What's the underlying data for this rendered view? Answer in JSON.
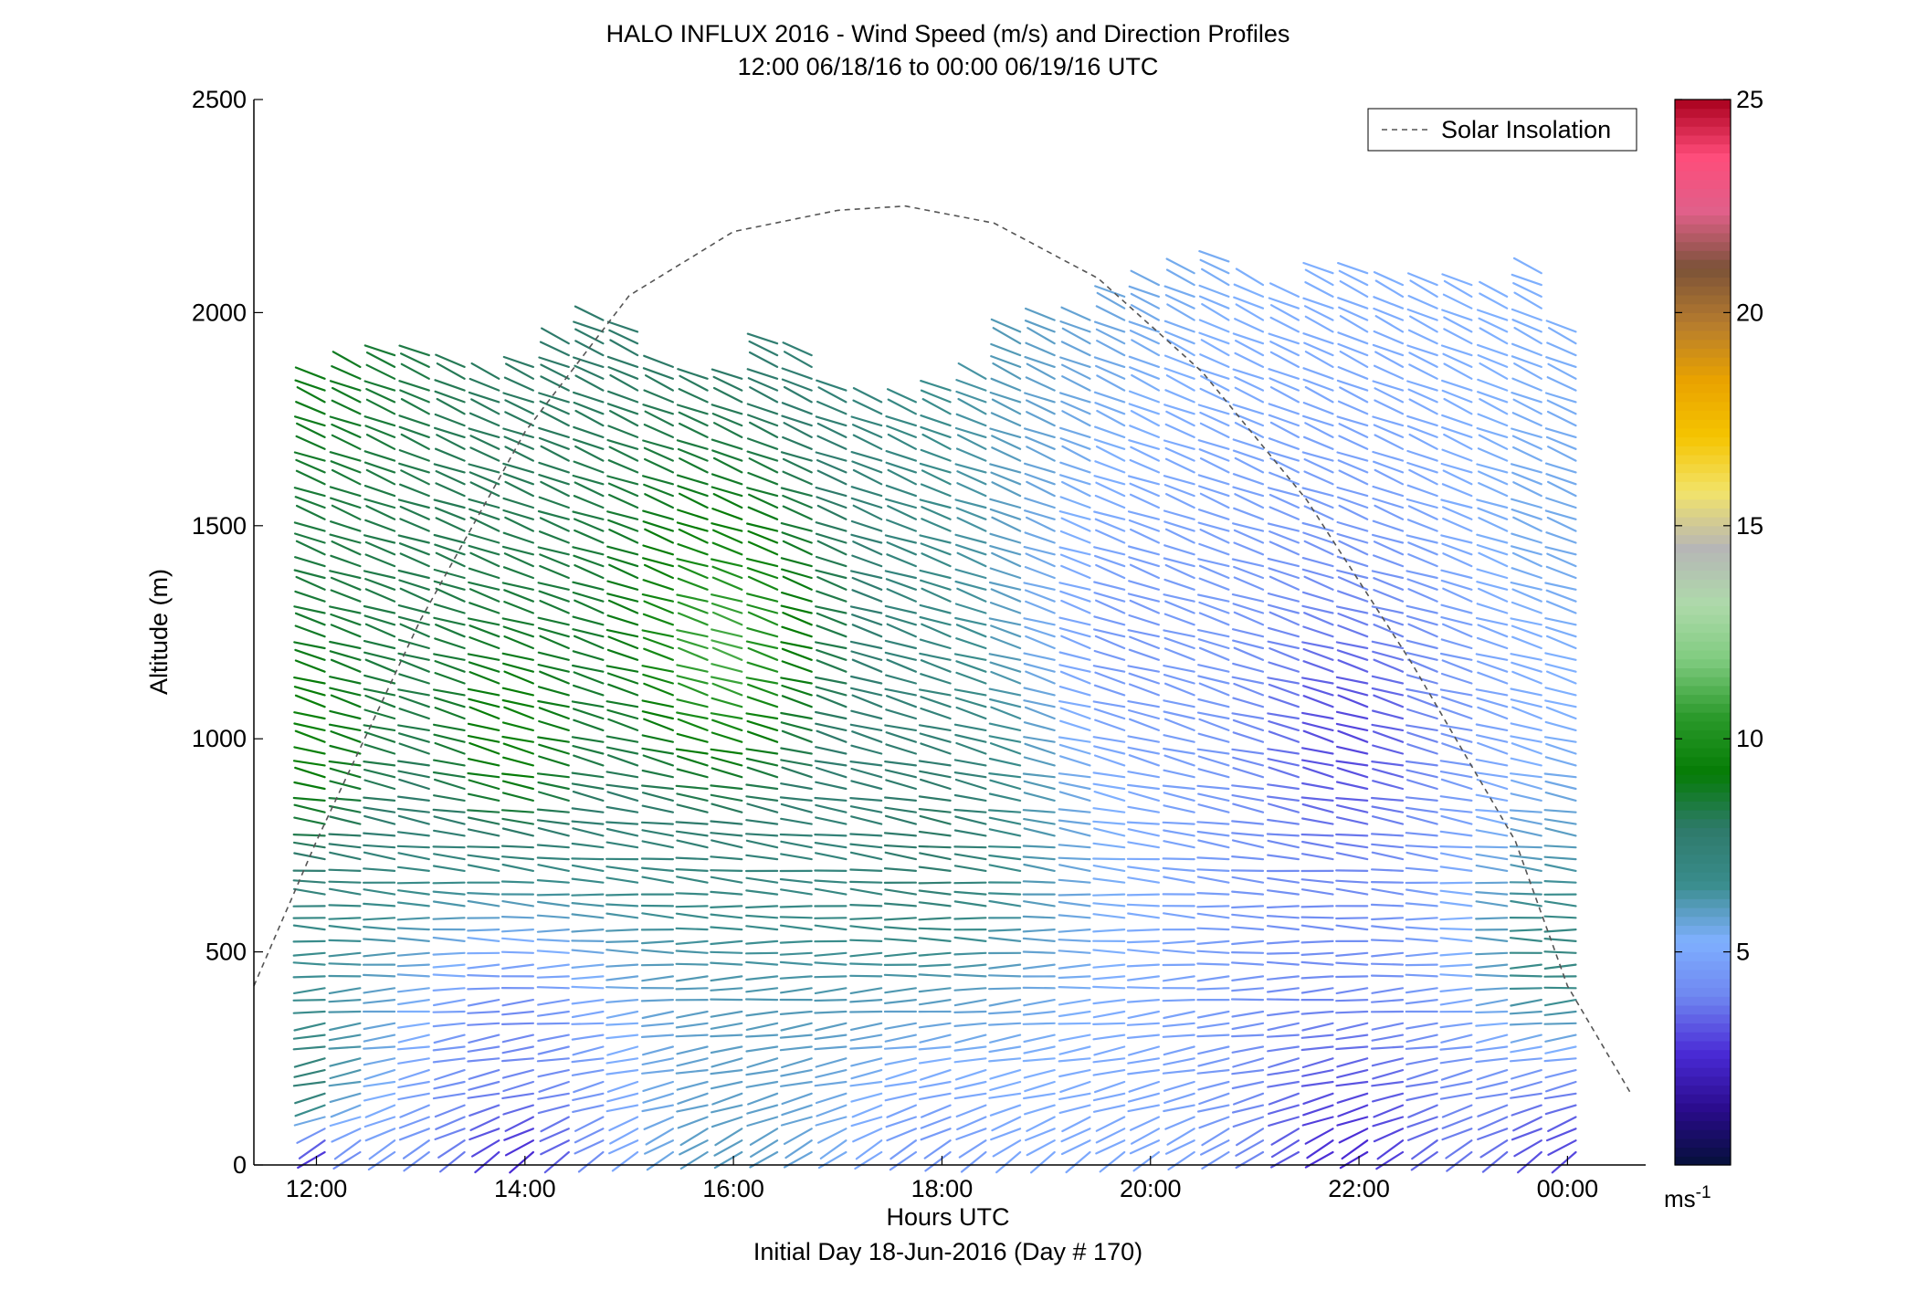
{
  "chart_data": {
    "type": "quiver",
    "title": "HALO INFLUX 2016 - Wind Speed (m/s) and Direction Profiles",
    "subtitle": "12:00 06/18/16 to 00:00 06/19/16  UTC",
    "xlabel": "Hours UTC",
    "xlabel2": "Initial Day 18-Jun-2016 (Day # 170)",
    "ylabel": "Altitude (m)",
    "xlim": [
      11.4,
      24.75
    ],
    "ylim": [
      0,
      2500
    ],
    "xticks": [
      {
        "value": 12,
        "label": "12:00"
      },
      {
        "value": 14,
        "label": "14:00"
      },
      {
        "value": 16,
        "label": "16:00"
      },
      {
        "value": 18,
        "label": "18:00"
      },
      {
        "value": 20,
        "label": "20:00"
      },
      {
        "value": 22,
        "label": "22:00"
      },
      {
        "value": 24,
        "label": "00:00"
      }
    ],
    "yticks": [
      {
        "value": 0,
        "label": "0"
      },
      {
        "value": 500,
        "label": "500"
      },
      {
        "value": 1000,
        "label": "1000"
      },
      {
        "value": 1500,
        "label": "1500"
      },
      {
        "value": 2000,
        "label": "2000"
      },
      {
        "value": 2500,
        "label": "2500"
      }
    ],
    "legend": {
      "label": "Solar Insolation",
      "placement": "top-right",
      "color": "#555555"
    },
    "colorbar": {
      "range": [
        0,
        25
      ],
      "ticks": [
        {
          "value": 5,
          "label": "5"
        },
        {
          "value": 10,
          "label": "10"
        },
        {
          "value": 15,
          "label": "15"
        },
        {
          "value": 20,
          "label": "20"
        },
        {
          "value": 25,
          "label": "25"
        }
      ],
      "unit_base": "ms",
      "unit_exp": "-1",
      "colors": [
        "#05103a",
        "#2a0b8c",
        "#4a2bd6",
        "#6f86f0",
        "#7fb0ff",
        "#3a8d8d",
        "#2e7a6a",
        "#057c05",
        "#2b9a2b",
        "#7fcb7f",
        "#aedaaa",
        "#b6b6b6",
        "#f2e36a",
        "#f5c400",
        "#e9a200",
        "#b67c2e",
        "#7b5238",
        "#e0608a",
        "#ff4c7a",
        "#a8001c"
      ]
    },
    "solar_insolation": {
      "peak_hour": 17.65,
      "peak_altitude": 2250,
      "points": [
        [
          11.4,
          420
        ],
        [
          12.0,
          760
        ],
        [
          13.0,
          1280
        ],
        [
          14.0,
          1720
        ],
        [
          15.0,
          2040
        ],
        [
          16.0,
          2190
        ],
        [
          17.0,
          2240
        ],
        [
          17.65,
          2250
        ],
        [
          18.5,
          2210
        ],
        [
          19.5,
          2080
        ],
        [
          20.5,
          1860
        ],
        [
          21.5,
          1560
        ],
        [
          22.5,
          1180
        ],
        [
          23.5,
          760
        ],
        [
          24.0,
          420
        ],
        [
          24.65,
          150
        ]
      ]
    },
    "wind_profiles": {
      "times": [
        12.08,
        12.42,
        12.75,
        13.08,
        13.42,
        13.75,
        14.08,
        14.42,
        14.75,
        15.08,
        15.42,
        15.75,
        16.08,
        16.42,
        16.75,
        17.08,
        17.42,
        17.75,
        18.08,
        18.42,
        18.75,
        19.08,
        19.42,
        19.75,
        20.08,
        20.42,
        20.75,
        21.08,
        21.42,
        21.75,
        22.08,
        22.42,
        22.75,
        23.08,
        23.42,
        23.75,
        24.08
      ],
      "top_altitude": [
        1850,
        1880,
        1900,
        1900,
        1880,
        1870,
        1880,
        1950,
        2000,
        1960,
        1880,
        1860,
        1870,
        1940,
        1900,
        1840,
        1800,
        1790,
        1820,
        1850,
        1980,
        1990,
        2000,
        2040,
        2070,
        2100,
        2120,
        2080,
        2060,
        2100,
        2100,
        2090,
        2080,
        2070,
        2050,
        2110,
        1960
      ],
      "altitude_step": 27.5,
      "direction_deg": [
        {
          "alt": 0,
          "deg": 230
        },
        {
          "alt": 150,
          "deg": 255
        },
        {
          "alt": 500,
          "deg": 270
        },
        {
          "alt": 1000,
          "deg": 285
        },
        {
          "alt": 1500,
          "deg": 290
        },
        {
          "alt": 2000,
          "deg": 295
        }
      ],
      "speed_ms": [
        {
          "hour": 12,
          "alt": 0,
          "speed": 2.5
        },
        {
          "hour": 12,
          "alt": 200,
          "speed": 7.5
        },
        {
          "hour": 12,
          "alt": 1000,
          "speed": 9.5
        },
        {
          "hour": 12,
          "alt": 1850,
          "speed": 9.0
        },
        {
          "hour": 14,
          "alt": 0,
          "speed": 2.5
        },
        {
          "hour": 14,
          "alt": 300,
          "speed": 4.0
        },
        {
          "hour": 14,
          "alt": 1000,
          "speed": 9.5
        },
        {
          "hour": 16,
          "alt": 0,
          "speed": 6.0
        },
        {
          "hour": 16,
          "alt": 1200,
          "speed": 11.0
        },
        {
          "hour": 18,
          "alt": 0,
          "speed": 4.5
        },
        {
          "hour": 18,
          "alt": 800,
          "speed": 8.0
        },
        {
          "hour": 20,
          "alt": 0,
          "speed": 5.0
        },
        {
          "hour": 20,
          "alt": 1200,
          "speed": 4.5
        },
        {
          "hour": 22,
          "alt": 0,
          "speed": 2.5
        },
        {
          "hour": 22,
          "alt": 1000,
          "speed": 3.0
        },
        {
          "hour": 24,
          "alt": 0,
          "speed": 3.0
        },
        {
          "hour": 24,
          "alt": 500,
          "speed": 7.0
        },
        {
          "hour": 24,
          "alt": 1500,
          "speed": 5.5
        }
      ]
    }
  }
}
